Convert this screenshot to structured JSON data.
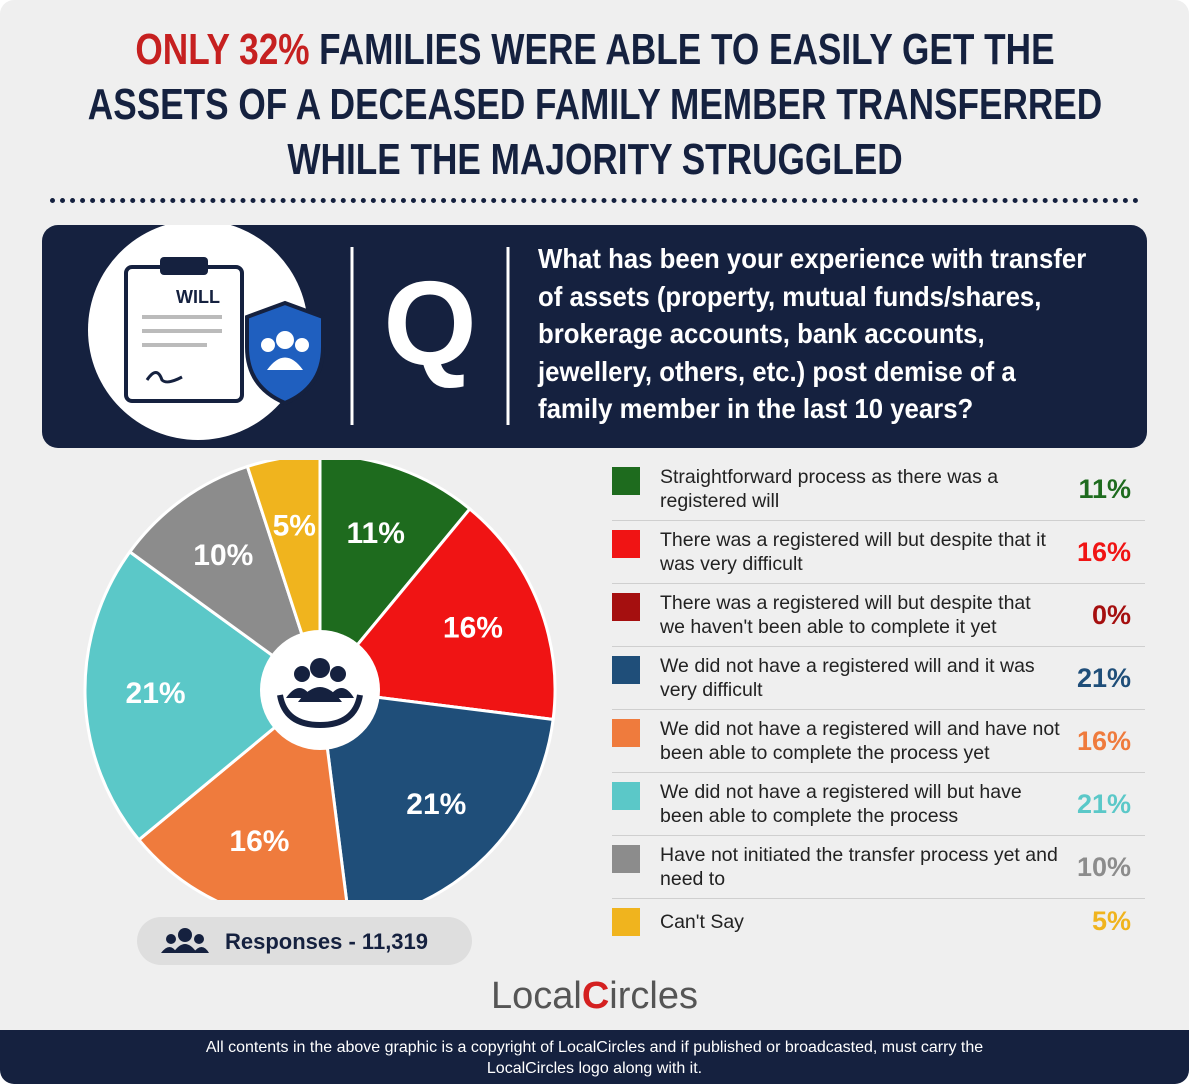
{
  "chart_data": {
    "type": "pie",
    "title_highlight": "ONLY 32%",
    "title_lines": [
      "FAMILIES WERE ABLE TO EASILY GET THE",
      "ASSETS OF A DECEASED FAMILY MEMBER TRANSFERRED",
      "WHILE THE MAJORITY STRUGGLED"
    ],
    "icon_label": "WILL",
    "question_mark": "Q",
    "question": "What has been your experience with transfer of assets (property, mutual funds/shares, brokerage accounts, bank accounts, jewellery, others, etc.) post demise of a family member in the last 10 years?",
    "categories": [
      "Straightforward process as there was a registered will",
      "There was a registered will but despite that it was very difficult",
      "There was a registered will but despite that we haven't been able to complete it yet",
      "We did not have a registered will and it was very difficult",
      "We did not have a registered will and have not been able to complete the process yet",
      "We did not have a registered will but have been able to complete the process",
      "Have not initiated the transfer process yet and need to",
      "Can't Say"
    ],
    "values": [
      11,
      16,
      0,
      21,
      16,
      21,
      10,
      5
    ],
    "value_labels": [
      "11%",
      "16%",
      "0%",
      "21%",
      "16%",
      "21%",
      "10%",
      "5%"
    ],
    "colors": [
      "#1e6b1e",
      "#f01414",
      "#a50f0f",
      "#1f4e79",
      "#ef7b3d",
      "#5bc8c8",
      "#8c8c8c",
      "#f0b41e"
    ],
    "responses": "Responses - 11,319",
    "logo": [
      "Local",
      "C",
      "ircles"
    ],
    "footer": "All contents in the above graphic is a copyright of LocalCircles and if published or broadcasted, must carry the LocalCircles logo along with it."
  }
}
